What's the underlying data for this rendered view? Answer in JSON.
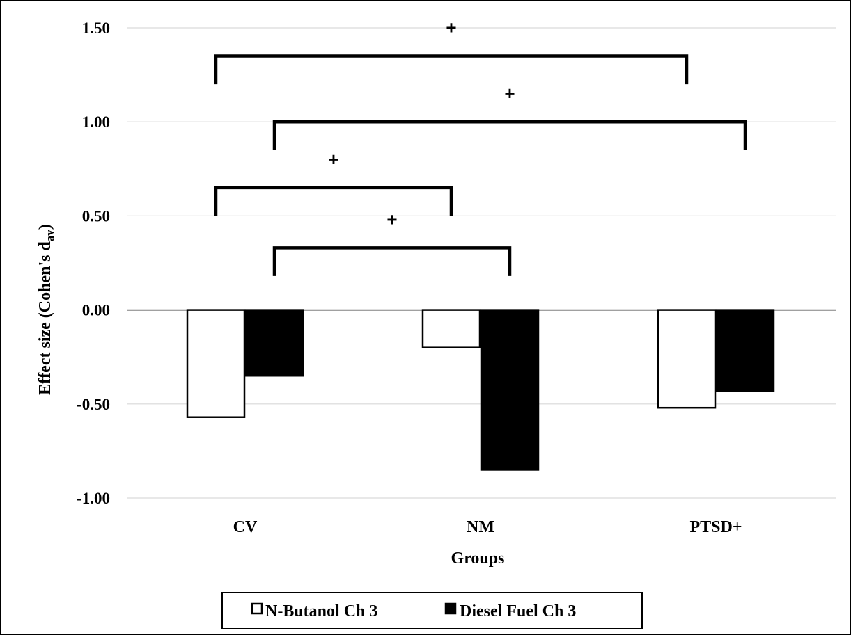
{
  "chart_data": {
    "type": "bar",
    "title": "",
    "xlabel": "Groups",
    "ylabel_main": "Effect size (Cohen's d",
    "ylabel_sub": "av",
    "ylabel_close": ")",
    "categories": [
      "CV",
      "NM",
      "PTSD+"
    ],
    "series": [
      {
        "name": "N-Butanol Ch 3",
        "values": [
          -0.57,
          -0.2,
          -0.52
        ],
        "fill": "#ffffff",
        "stroke": "#000000"
      },
      {
        "name": "Diesel Fuel Ch 3",
        "values": [
          -0.35,
          -0.85,
          -0.43
        ],
        "fill": "#000000",
        "stroke": "#000000"
      }
    ],
    "ylim": [
      -1.0,
      1.5
    ],
    "yticks": [
      1.5,
      1.0,
      0.5,
      0.0,
      -0.5,
      -1.0
    ],
    "ytick_labels": [
      "1.50",
      "1.00",
      "0.50",
      "0.00",
      "-0.50",
      "-1.00"
    ],
    "grid": true,
    "legend_position": "bottom",
    "significance_brackets": [
      {
        "from_category": "CV",
        "from_series": "N-Butanol Ch 3",
        "to_category": "PTSD+",
        "to_series": "N-Butanol Ch 3",
        "level": 1.35,
        "leg_end": 1.2,
        "marker": "+"
      },
      {
        "from_category": "CV",
        "from_series": "Diesel Fuel Ch 3",
        "to_category": "PTSD+",
        "to_series": "Diesel Fuel Ch 3",
        "level": 1.0,
        "leg_end": 0.85,
        "marker": "+"
      },
      {
        "from_category": "CV",
        "from_series": "N-Butanol Ch 3",
        "to_category": "NM",
        "to_series": "N-Butanol Ch 3",
        "level": 0.65,
        "leg_end": 0.5,
        "marker": "+"
      },
      {
        "from_category": "CV",
        "from_series": "Diesel Fuel Ch 3",
        "to_category": "NM",
        "to_series": "Diesel Fuel Ch 3",
        "level": 0.33,
        "leg_end": 0.18,
        "marker": "+"
      }
    ],
    "colors": {
      "grid": "#d9d9d9",
      "zero_line": "#000000",
      "frame": "#000000"
    }
  }
}
